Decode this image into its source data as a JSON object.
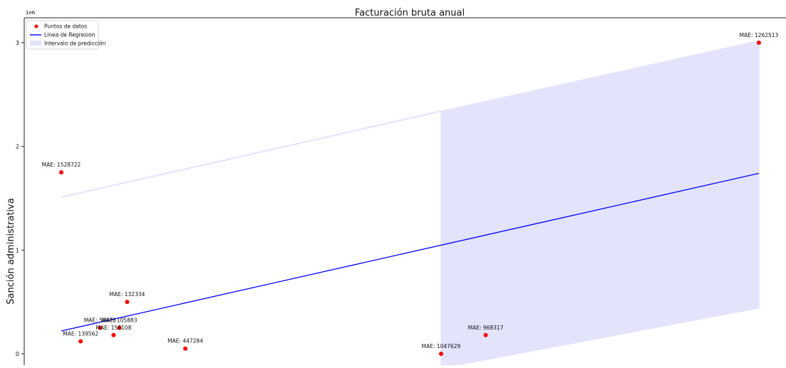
{
  "chart_data": {
    "type": "scatter",
    "title": "Facturación bruta anual",
    "xlabel": "",
    "ylabel": "Sanción administrativa",
    "y_multiplier_label": "1e6",
    "y_ticks": [
      0,
      1,
      2,
      3
    ],
    "ylim": [
      -0.1,
      3.25
    ],
    "xlim": [
      -0.1,
      3.5
    ],
    "grid": false,
    "legend_position": "top-left",
    "legend": [
      {
        "label": "Puntos de datos",
        "kind": "marker",
        "color": "#ff0000"
      },
      {
        "label": "Línea de Regresion",
        "kind": "line",
        "color": "#0000ff"
      },
      {
        "label": "Intervalo de predicción",
        "kind": "patch",
        "color": "#e3e3fb"
      }
    ],
    "series": [
      {
        "name": "Puntos de datos",
        "color": "#ff0000",
        "points": [
          {
            "x": 0.0,
            "y": 1.75,
            "label": "MAE: 1528722"
          },
          {
            "x": 0.1,
            "y": 0.12,
            "label": "MAE: 139562"
          },
          {
            "x": 0.2,
            "y": 0.25,
            "label": "MAE: 56076"
          },
          {
            "x": 0.3,
            "y": 0.25,
            "label": "MAE: 105883"
          },
          {
            "x": 0.27,
            "y": 0.18,
            "label": "MAE: 158108"
          },
          {
            "x": 0.34,
            "y": 0.5,
            "label": "MAE: 132334"
          },
          {
            "x": 0.64,
            "y": 0.05,
            "label": "MAE: 447284"
          },
          {
            "x": 1.96,
            "y": 0.0,
            "label": "MAE: 1047629"
          },
          {
            "x": 2.19,
            "y": 0.18,
            "label": "MAE: 968317"
          },
          {
            "x": 3.6,
            "y": 3.0,
            "label": "MAE: 1262513"
          }
        ]
      }
    ],
    "regression_line": {
      "name": "Línea de Regresion",
      "color": "#0000ff",
      "x": [
        0.0,
        3.6
      ],
      "y": [
        0.22,
        1.74
      ]
    },
    "prediction_interval": {
      "name": "Intervalo de predicción",
      "color": "#e3e3fb",
      "upper": {
        "x": [
          0.0,
          1.96,
          3.6
        ],
        "y": [
          1.51,
          2.34,
          3.02
        ]
      },
      "lower": {
        "x": [
          1.96,
          3.6
        ],
        "y": [
          -0.14,
          0.44
        ]
      }
    }
  }
}
